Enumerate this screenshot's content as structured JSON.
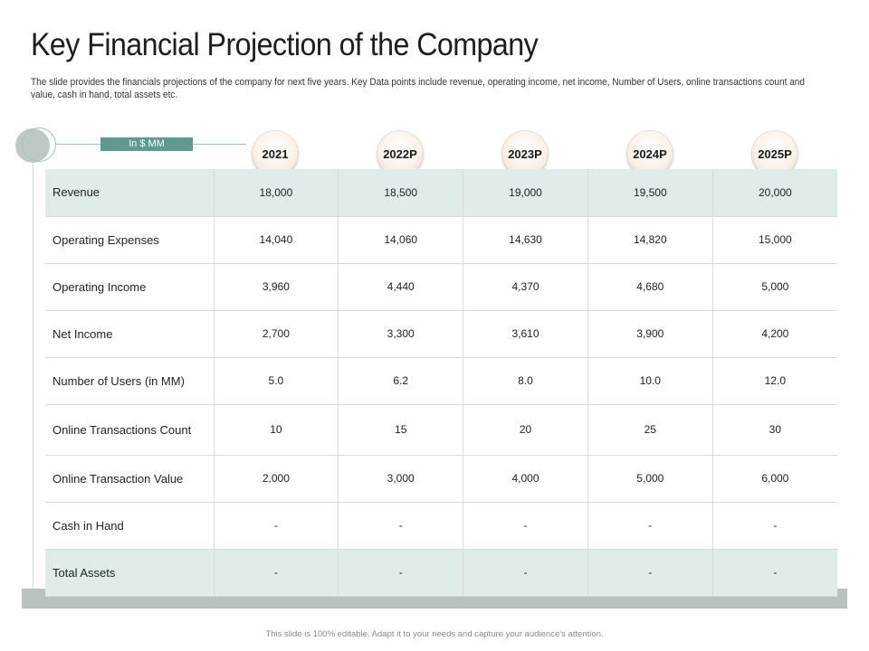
{
  "slide": {
    "title": "Key Financial Projection of the Company",
    "subtitle": "The slide provides the financials projections of the company for next five years. Key Data points include revenue, operating income, net income, Number of Users, online transactions count and value, cash in hand, total assets etc.",
    "unit_label": "In $ MM",
    "footer": "This slide is 100% editable. Adapt it to your needs and capture your audience's attention."
  },
  "colors": {
    "accent": "#5e9a8f",
    "row_shade": "#dfecea",
    "frame_gray": "#b9c1c1"
  },
  "table": {
    "years": [
      "2021",
      "2022P",
      "2023P",
      "2024P",
      "2025P"
    ],
    "rows": [
      {
        "label": "Revenue",
        "values": [
          "18,000",
          "18,500",
          "19,000",
          "19,500",
          "20,000"
        ]
      },
      {
        "label": "Operating Expenses",
        "values": [
          "14,040",
          "14,060",
          "14,630",
          "14,820",
          "15,000"
        ]
      },
      {
        "label": "Operating Income",
        "values": [
          "3,960",
          "4,440",
          "4,370",
          "4,680",
          "5,000"
        ]
      },
      {
        "label": "Net Income",
        "values": [
          "2,700",
          "3,300",
          "3,610",
          "3,900",
          "4,200"
        ]
      },
      {
        "label": "Number of Users (in MM)",
        "values": [
          "5.0",
          "6.2",
          "8.0",
          "10.0",
          "12.0"
        ]
      },
      {
        "label": "Online Transactions Count",
        "values": [
          "10",
          "15",
          "20",
          "25",
          "30"
        ]
      },
      {
        "label": "Online Transaction Value",
        "values": [
          "2,000",
          "3,000",
          "4,000",
          "5,000",
          "6,000"
        ]
      },
      {
        "label": "Cash in Hand",
        "values": [
          "-",
          "-",
          "-",
          "-",
          "-"
        ]
      },
      {
        "label": "Total Assets",
        "values": [
          "-",
          "-",
          "-",
          "-",
          "-"
        ]
      }
    ]
  }
}
